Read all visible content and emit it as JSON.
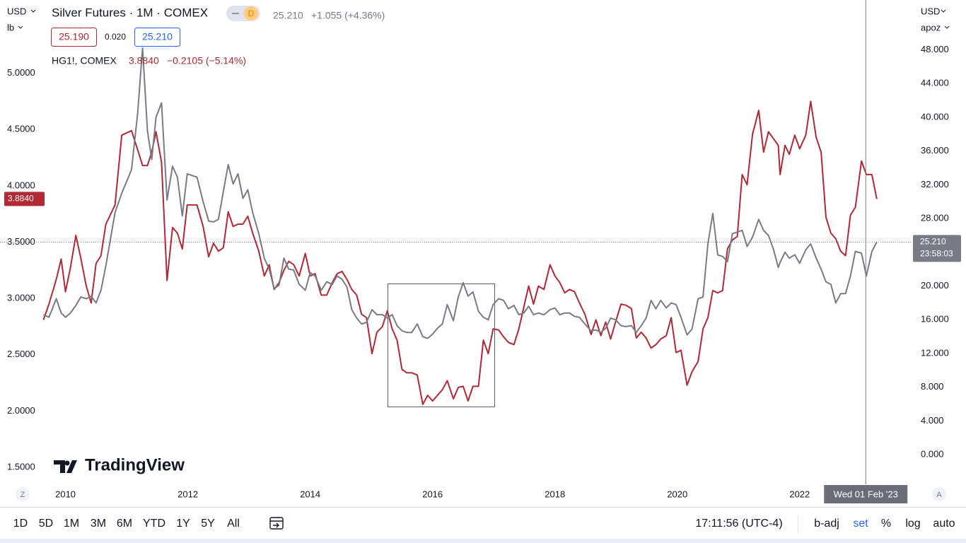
{
  "header": {
    "currency": "USD",
    "unit": "lb",
    "badge": "D",
    "price": "25.210",
    "change": "+1.055 (+4.36%)",
    "bid": "25.190",
    "spread": "0.020",
    "ask": "25.210",
    "compare_price": "3.8840",
    "compare_change": "−0.2105 (−5.14%)",
    "right_currency": "USD",
    "right_unit": "apoz"
  },
  "watermark": "TradingView",
  "chart_controls": {
    "left": "Z",
    "right": "A"
  },
  "toolbar": {
    "ranges": [
      "1D",
      "5D",
      "1M",
      "3M",
      "6M",
      "YTD",
      "1Y",
      "5Y",
      "All"
    ],
    "clock": "17:11:56 (UTC-4)",
    "options": [
      "b-adj",
      "set",
      "%",
      "log",
      "auto"
    ]
  },
  "chart_data": {
    "type": "line",
    "x": [
      2009.64,
      2009.73,
      2009.85,
      2009.93,
      2010.0,
      2010.08,
      2010.17,
      2010.25,
      2010.34,
      2010.42,
      2010.5,
      2010.58,
      2010.66,
      2010.81,
      2010.92,
      2011.08,
      2011.18,
      2011.26,
      2011.34,
      2011.41,
      2011.48,
      2011.57,
      2011.66,
      2011.75,
      2011.83,
      2011.91,
      2011.99,
      2012.15,
      2012.25,
      2012.34,
      2012.42,
      2012.5,
      2012.58,
      2012.66,
      2012.74,
      2012.82,
      2012.9,
      2012.98,
      2013.06,
      2013.16,
      2013.25,
      2013.33,
      2013.41,
      2013.49,
      2013.57,
      2013.65,
      2013.73,
      2013.82,
      2013.92,
      2014.0,
      2014.08,
      2014.18,
      2014.27,
      2014.36,
      2014.44,
      2014.52,
      2014.6,
      2014.68,
      2014.76,
      2014.84,
      2014.92,
      2015.01,
      2015.09,
      2015.18,
      2015.26,
      2015.34,
      2015.42,
      2015.5,
      2015.58,
      2015.66,
      2015.75,
      2015.84,
      2015.92,
      2016.0,
      2016.08,
      2016.16,
      2016.24,
      2016.34,
      2016.42,
      2016.5,
      2016.58,
      2016.66,
      2016.75,
      2016.83,
      2016.91,
      2016.99,
      2017.08,
      2017.16,
      2017.24,
      2017.33,
      2017.41,
      2017.49,
      2017.57,
      2017.65,
      2017.73,
      2017.82,
      2017.92,
      2018.0,
      2018.08,
      2018.16,
      2018.24,
      2018.32,
      2018.4,
      2018.49,
      2018.59,
      2018.67,
      2018.75,
      2018.83,
      2018.91,
      2018.99,
      2019.08,
      2019.16,
      2019.25,
      2019.33,
      2019.41,
      2019.49,
      2019.57,
      2019.65,
      2019.73,
      2019.82,
      2019.9,
      2019.98,
      2020.06,
      2020.16,
      2020.24,
      2020.34,
      2020.42,
      2020.5,
      2020.58,
      2020.66,
      2020.74,
      2020.82,
      2020.9,
      2020.98,
      2021.06,
      2021.14,
      2021.23,
      2021.33,
      2021.41,
      2021.49,
      2021.57,
      2021.65,
      2021.68,
      2021.76,
      2021.83,
      2021.92,
      2022.0,
      2022.1,
      2022.18,
      2022.27,
      2022.35,
      2022.43,
      2022.51,
      2022.59,
      2022.67,
      2022.75,
      2022.83,
      2022.91,
      2023.01,
      2023.09,
      2023.18,
      2023.26
    ],
    "xlim": [
      2008.93,
      2023.84
    ],
    "xticks": [
      2010,
      2012,
      2014,
      2016,
      2018,
      2020,
      2022
    ],
    "ylim": [
      1.35,
      5.65
    ],
    "yticks": [
      {
        "value": 1.5,
        "label": "1.5000"
      },
      {
        "value": 2,
        "label": "2.0000"
      },
      {
        "value": 2.5,
        "label": "2.5000"
      },
      {
        "value": 3,
        "label": "3.0000"
      },
      {
        "value": 3.5,
        "label": "3.5000"
      },
      {
        "value": 4,
        "label": "4.0000"
      },
      {
        "value": 4.5,
        "label": "4.5000"
      },
      {
        "value": 5,
        "label": "5.0000"
      }
    ],
    "y2lim": [
      -3.5,
      53.9
    ],
    "y2ticks": [
      {
        "value": 0,
        "label": "0.000"
      },
      {
        "value": 4,
        "label": "4.000"
      },
      {
        "value": 8,
        "label": "8.000"
      },
      {
        "value": 12,
        "label": "12.000"
      },
      {
        "value": 16,
        "label": "16.000"
      },
      {
        "value": 20,
        "label": "20.000"
      },
      {
        "value": 24,
        "label": "24.000"
      },
      {
        "value": 28,
        "label": "28.000"
      },
      {
        "value": 32,
        "label": "32.000"
      },
      {
        "value": 36,
        "label": "36.000"
      },
      {
        "value": 40,
        "label": "40.000"
      },
      {
        "value": 44,
        "label": "44.000"
      },
      {
        "value": 48,
        "label": "48.000"
      }
    ],
    "grid": false,
    "log": false,
    "crosshair": {
      "x": 2023.08,
      "label": "Wed 01 Feb '23"
    },
    "series": [
      {
        "name": "HG1!, COMEX",
        "color": "#b22833",
        "last_label": "3.8840",
        "values": [
          2.81,
          2.95,
          3.17,
          3.35,
          3.06,
          3.27,
          3.56,
          3.36,
          3.11,
          2.96,
          3.31,
          3.38,
          3.66,
          3.83,
          4.45,
          4.49,
          4.32,
          4.18,
          4.18,
          4.3,
          4.48,
          4.21,
          3.16,
          3.63,
          3.58,
          3.44,
          3.83,
          3.83,
          3.64,
          3.37,
          3.49,
          3.42,
          3.45,
          3.77,
          3.64,
          3.66,
          3.66,
          3.73,
          3.58,
          3.42,
          3.2,
          3.3,
          3.08,
          3.14,
          3.25,
          3.33,
          3.3,
          3.2,
          3.4,
          3.2,
          3.22,
          3.03,
          3.03,
          3.14,
          3.22,
          3.24,
          3.17,
          3.08,
          3.03,
          2.86,
          2.83,
          2.51,
          2.7,
          2.75,
          2.89,
          2.73,
          2.63,
          2.37,
          2.34,
          2.34,
          2.32,
          2.06,
          2.14,
          2.09,
          2.14,
          2.19,
          2.27,
          2.11,
          2.21,
          2.22,
          2.09,
          2.22,
          2.22,
          2.63,
          2.51,
          2.73,
          2.72,
          2.66,
          2.61,
          2.59,
          2.73,
          2.92,
          3.11,
          2.95,
          3.11,
          3.08,
          3.3,
          3.2,
          3.14,
          3.05,
          3.08,
          3.06,
          2.96,
          2.86,
          2.68,
          2.81,
          2.67,
          2.79,
          2.64,
          2.79,
          2.95,
          2.94,
          2.91,
          2.65,
          2.7,
          2.65,
          2.56,
          2.59,
          2.64,
          2.67,
          2.83,
          2.52,
          2.54,
          2.23,
          2.35,
          2.44,
          2.73,
          2.83,
          3.07,
          3.05,
          3.07,
          3.44,
          3.52,
          3.55,
          4.1,
          4.01,
          4.46,
          4.67,
          4.3,
          4.48,
          4.42,
          4.36,
          4.1,
          4.36,
          4.28,
          4.45,
          4.33,
          4.45,
          4.75,
          4.43,
          4.3,
          3.72,
          3.58,
          3.53,
          3.42,
          3.38,
          3.74,
          3.81,
          4.22,
          4.1,
          4.1,
          3.884
        ]
      },
      {
        "name": "Silver Futures · 1M · COMEX",
        "color": "#787b86",
        "axis": "y2",
        "last_label": "25.210",
        "countdown": "23:58:03",
        "values": [
          16.6,
          16.3,
          18.5,
          16.8,
          16.3,
          16.8,
          17.7,
          18.7,
          18.5,
          18.8,
          18.0,
          19.5,
          22.4,
          28.7,
          31.0,
          33.8,
          40.5,
          48.2,
          38.4,
          35.0,
          40.0,
          41.7,
          30.2,
          34.2,
          32.9,
          28.3,
          33.3,
          32.9,
          30.0,
          27.7,
          27.6,
          27.9,
          31.2,
          34.4,
          32.1,
          33.3,
          30.4,
          31.4,
          28.7,
          26.2,
          23.3,
          22.0,
          19.7,
          20.1,
          23.3,
          22.0,
          21.9,
          20.2,
          19.5,
          21.6,
          21.2,
          19.5,
          20.5,
          20.2,
          21.2,
          20.8,
          19.9,
          17.2,
          16.2,
          15.5,
          15.7,
          17.2,
          16.6,
          16.6,
          16.2,
          16.6,
          15.3,
          14.7,
          14.5,
          14.5,
          15.5,
          14.0,
          13.8,
          14.3,
          15.0,
          15.5,
          17.8,
          15.9,
          18.7,
          20.4,
          18.8,
          19.3,
          17.0,
          16.3,
          16.0,
          17.8,
          18.5,
          18.3,
          17.3,
          17.7,
          16.6,
          16.8,
          17.6,
          16.6,
          16.8,
          16.6,
          17.2,
          17.4,
          16.6,
          16.8,
          16.8,
          16.4,
          16.3,
          15.5,
          14.7,
          14.8,
          14.5,
          15.0,
          16.2,
          16.0,
          15.3,
          15.2,
          15.3,
          14.5,
          15.3,
          16.2,
          18.3,
          17.3,
          18.3,
          17.4,
          18.0,
          17.8,
          16.3,
          14.2,
          14.9,
          18.5,
          18.7,
          25.0,
          28.6,
          23.7,
          23.5,
          22.9,
          26.2,
          26.4,
          26.6,
          24.7,
          25.8,
          27.9,
          26.6,
          26.0,
          24.4,
          22.2,
          22.8,
          24.0,
          23.3,
          23.7,
          22.7,
          24.3,
          25.0,
          23.3,
          22.0,
          20.5,
          20.2,
          18.0,
          19.1,
          19.1,
          21.2,
          24.1,
          23.9,
          21.2,
          24.1,
          25.21
        ]
      }
    ]
  }
}
